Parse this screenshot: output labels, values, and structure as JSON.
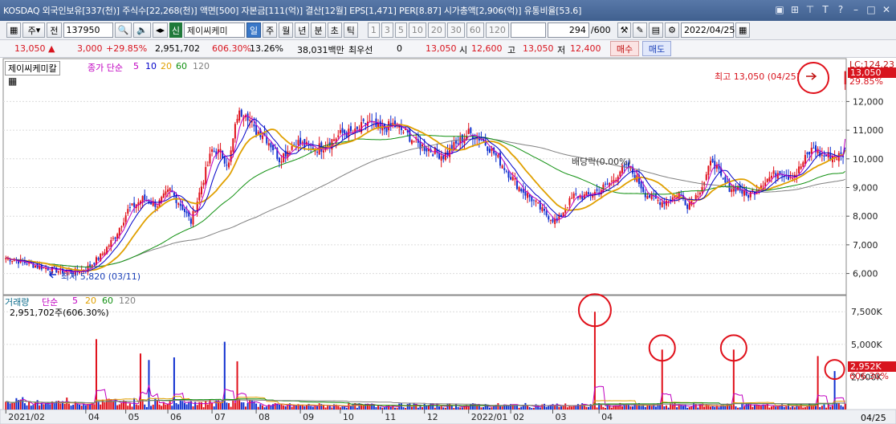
{
  "title_bar": {
    "text": "KOSDAQ 외국인보유[337(천)] 주식수[22,268(천)] 액면[500] 자본금[111(억)] 결산[12월] EPS[1,471] PER[8.87] 시가총액[2,906(억)] 유통비율[53.6]",
    "icons": [
      "window-icon",
      "chart-icon",
      "pin-icon",
      "text-icon",
      "help-icon",
      "minimize-icon",
      "maximize-icon",
      "close-icon"
    ]
  },
  "toolbar": {
    "period_label": "주",
    "prev_label": "전",
    "code": "137950",
    "sin_label": "신",
    "stock_name": "제이씨케미",
    "tabs": [
      "일",
      "주",
      "월",
      "년",
      "분",
      "초",
      "틱"
    ],
    "intervals": [
      "1",
      "3",
      "5",
      "10",
      "20",
      "30",
      "60",
      "120"
    ],
    "count": "294",
    "count_total": "/600",
    "date": "2022/04/25"
  },
  "quote": {
    "price": "13,050",
    "change": "3,000",
    "change_pct": "+29.85%",
    "volume": "2,951,702",
    "volume_ratio": "606.30%",
    "turnover": "13.26%",
    "amount": "38,031백만",
    "best_label": "최우선",
    "best_value": "0",
    "best_price": "13,050",
    "open_label": "시",
    "open": "12,600",
    "high_label": "고",
    "high": "13,050",
    "low_label": "저",
    "low": "12,400",
    "buy_label": "매수",
    "sell_label": "매도"
  },
  "price_legend": {
    "stock_label": "제이씨케미칼",
    "ma_label": "종가 단순",
    "ma_periods": [
      "5",
      "10",
      "20",
      "60",
      "120"
    ],
    "ma_colors": [
      "#c000c0",
      "#0000c8",
      "#e0a000",
      "#109010",
      "#808080"
    ]
  },
  "volume_legend": {
    "label": "거래량",
    "ma_label": "단순",
    "periods": [
      "5",
      "20",
      "60",
      "120"
    ],
    "value_text": "2,951,702주(606.30%)"
  },
  "annotations": {
    "high_label": "최고 13,050 (04/25)",
    "low_label": "최저 5,820 (03/11)",
    "dividend_label": "배당락(0.00%)"
  },
  "right_labels": {
    "lc_label": "LC:124.23",
    "price_box": "13,050",
    "pct_label": "29.85%",
    "vol_box": "2,952K",
    "vol_pct": "606.30%",
    "last_date": "04/25"
  },
  "chart_data": {
    "type": "candlestick",
    "x_ticks": [
      "2021/02",
      "04",
      "05",
      "06",
      "07",
      "08",
      "09",
      "10",
      "11",
      "12",
      "2022/01",
      "02",
      "03",
      "04"
    ],
    "price_axis": [
      "12,000",
      "11,000",
      "10,000",
      "9,000",
      "8,000",
      "7,000",
      "6,000"
    ],
    "price_ylim": [
      5400,
      13300
    ],
    "volume_axis": [
      "7,500K",
      "5,000K",
      "2,500K"
    ],
    "volume_ylim": [
      0,
      8500
    ],
    "close_trend": [
      [
        0,
        6550
      ],
      [
        8,
        6400
      ],
      [
        15,
        6250
      ],
      [
        25,
        6100
      ],
      [
        32,
        6050
      ],
      [
        38,
        6150
      ],
      [
        45,
        6600
      ],
      [
        52,
        7300
      ],
      [
        58,
        8200
      ],
      [
        65,
        8600
      ],
      [
        72,
        8400
      ],
      [
        78,
        8900
      ],
      [
        84,
        8300
      ],
      [
        88,
        7800
      ],
      [
        92,
        8800
      ],
      [
        98,
        10300
      ],
      [
        102,
        10200
      ],
      [
        106,
        9800
      ],
      [
        110,
        11500
      ],
      [
        114,
        11700
      ],
      [
        118,
        11000
      ],
      [
        122,
        10900
      ],
      [
        126,
        10500
      ],
      [
        130,
        10000
      ],
      [
        134,
        10300
      ],
      [
        138,
        10600
      ],
      [
        144,
        10400
      ],
      [
        150,
        10400
      ],
      [
        156,
        10700
      ],
      [
        160,
        10900
      ],
      [
        166,
        10900
      ],
      [
        172,
        11300
      ],
      [
        178,
        11000
      ],
      [
        184,
        11200
      ],
      [
        190,
        10900
      ],
      [
        196,
        10500
      ],
      [
        202,
        10300
      ],
      [
        208,
        10100
      ],
      [
        214,
        10500
      ],
      [
        220,
        10900
      ],
      [
        226,
        10700
      ],
      [
        232,
        10200
      ],
      [
        238,
        9600
      ],
      [
        244,
        9000
      ],
      [
        250,
        8600
      ],
      [
        256,
        8100
      ],
      [
        262,
        7800
      ],
      [
        266,
        8300
      ],
      [
        270,
        8700
      ],
      [
        276,
        8700
      ],
      [
        282,
        8900
      ],
      [
        288,
        9200
      ],
      [
        292,
        9600
      ],
      [
        296,
        9700
      ],
      [
        300,
        9300
      ],
      [
        304,
        8800
      ],
      [
        308,
        8600
      ],
      [
        312,
        8500
      ],
      [
        316,
        8600
      ],
      [
        320,
        8800
      ],
      [
        324,
        8400
      ],
      [
        328,
        8700
      ],
      [
        332,
        9200
      ],
      [
        336,
        10000
      ],
      [
        340,
        9300
      ],
      [
        344,
        9000
      ],
      [
        348,
        9000
      ],
      [
        352,
        8700
      ],
      [
        356,
        8900
      ],
      [
        360,
        9200
      ],
      [
        364,
        9400
      ],
      [
        368,
        9600
      ],
      [
        372,
        9400
      ],
      [
        376,
        9500
      ],
      [
        380,
        10000
      ],
      [
        384,
        10400
      ],
      [
        388,
        10100
      ]
    ],
    "volume_spikes_k": [
      [
        43,
        5400
      ],
      [
        64,
        4300
      ],
      [
        68,
        3800
      ],
      [
        80,
        4000
      ],
      [
        104,
        5200
      ],
      [
        110,
        3700
      ],
      [
        280,
        7500
      ],
      [
        312,
        4600
      ],
      [
        346,
        4600
      ],
      [
        386,
        4100
      ],
      [
        394,
        2952
      ]
    ],
    "circled_spikes_k": [
      7500,
      4600,
      4600,
      2952
    ]
  }
}
